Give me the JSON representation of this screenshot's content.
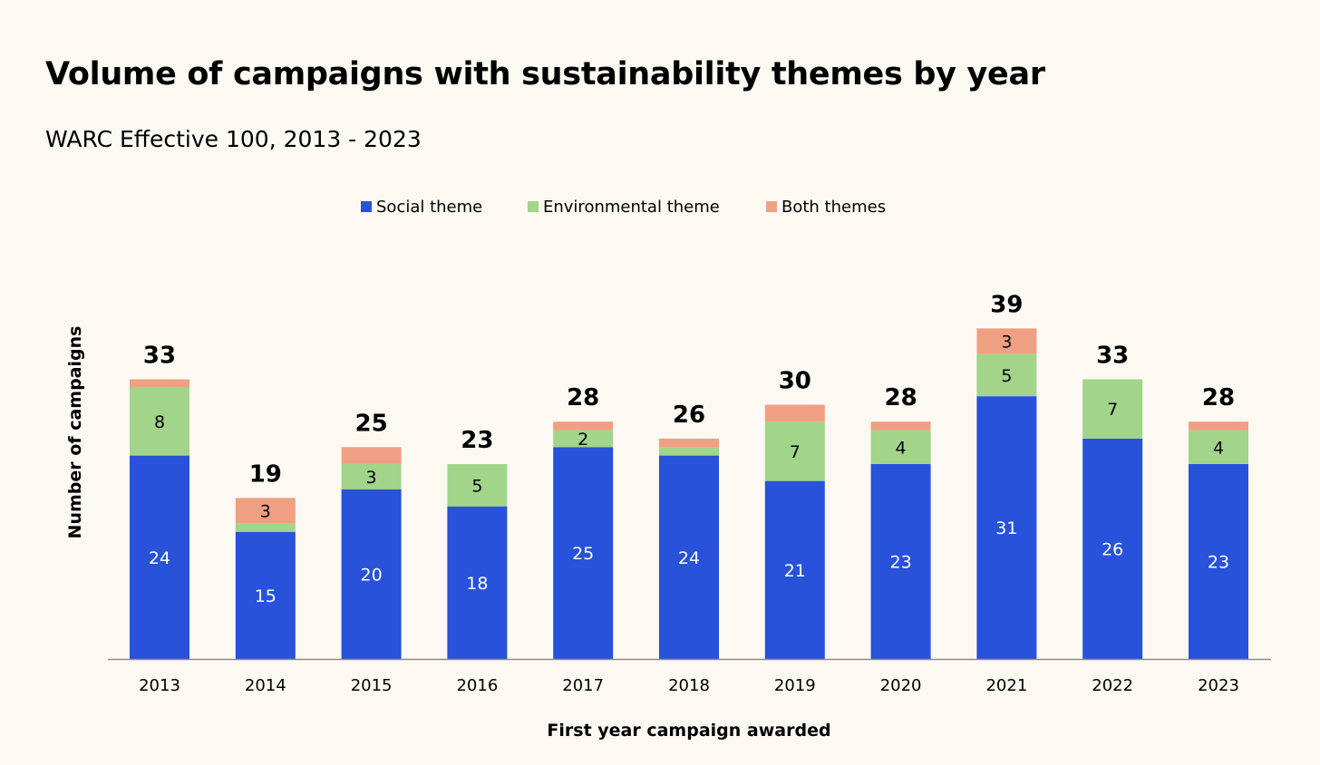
{
  "colors": {
    "background": "#fcf9f3",
    "social": "#2752d9",
    "environmental": "#a2d48a",
    "both": "#f0a082",
    "axis": "#8c8c8c"
  },
  "chart_data": {
    "type": "bar",
    "stacked": true,
    "title": "Volume of campaigns with sustainability themes by year",
    "subtitle": "WARC Effective 100, 2013 - 2023",
    "xlabel": "First year campaign awarded",
    "ylabel": "Number of campaigns",
    "ylim": [
      0,
      42
    ],
    "grid": false,
    "legend_position": "top-center",
    "categories": [
      "2013",
      "2014",
      "2015",
      "2016",
      "2017",
      "2018",
      "2019",
      "2020",
      "2021",
      "2022",
      "2023"
    ],
    "series": [
      {
        "name": "Social theme",
        "color": "#2752d9",
        "values": [
          24,
          15,
          20,
          18,
          25,
          24,
          21,
          23,
          31,
          26,
          23
        ]
      },
      {
        "name": "Environmental theme",
        "color": "#a2d48a",
        "values": [
          8,
          1,
          3,
          5,
          2,
          1,
          7,
          4,
          5,
          7,
          4
        ]
      },
      {
        "name": "Both themes",
        "color": "#f0a082",
        "values": [
          1,
          3,
          2,
          0,
          1,
          1,
          2,
          1,
          3,
          0,
          1
        ]
      }
    ],
    "data_labels": [
      [
        "24",
        "15",
        "20",
        "18",
        "25",
        "24",
        "21",
        "23",
        "31",
        "26",
        "23"
      ],
      [
        "8",
        "",
        "3",
        "5",
        "2",
        "",
        "7",
        "4",
        "5",
        "7",
        "4"
      ],
      [
        "",
        "3",
        "",
        "",
        "",
        "",
        "",
        "",
        "3",
        "",
        ""
      ]
    ],
    "totals": [
      "33",
      "19",
      "25",
      "23",
      "28",
      "26",
      "30",
      "28",
      "39",
      "33",
      "28"
    ]
  }
}
